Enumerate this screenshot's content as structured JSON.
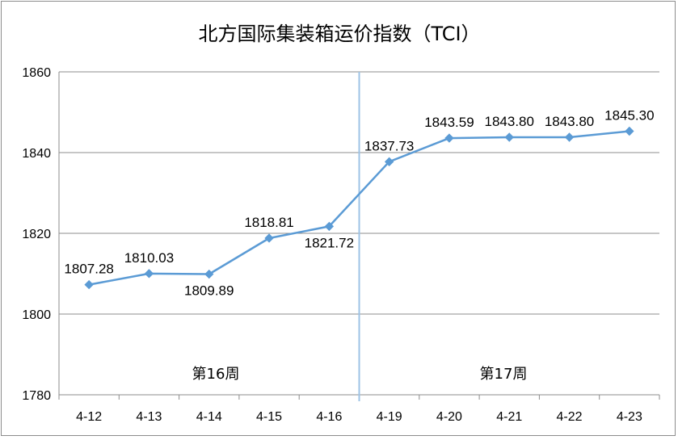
{
  "chart_data": {
    "type": "line",
    "title": "北方国际集装箱运价指数（TCI）",
    "xlabel": "",
    "ylabel": "",
    "categories": [
      "4-12",
      "4-13",
      "4-14",
      "4-15",
      "4-16",
      "4-19",
      "4-20",
      "4-21",
      "4-22",
      "4-23"
    ],
    "series": [
      {
        "values": [
          1807.28,
          1810.03,
          1809.89,
          1818.81,
          1821.72,
          1837.73,
          1843.59,
          1843.8,
          1843.8,
          1845.3
        ],
        "labels": [
          "1807.28",
          "1810.03",
          "1809.89",
          "1818.81",
          "1821.72",
          "1837.73",
          "1843.59",
          "1843.80",
          "1843.80",
          "1845.30"
        ],
        "color": "#5b9bd5"
      }
    ],
    "ylim": [
      1780,
      1860
    ],
    "yticks": [
      "1780",
      "1800",
      "1820",
      "1840",
      "1860"
    ],
    "grid": true,
    "legend": "none",
    "week_divider": {
      "between": [
        "4-16",
        "4-19"
      ],
      "color": "#9dc3e6"
    },
    "annotations": [
      {
        "text": "第16周"
      },
      {
        "text": "第17周"
      }
    ]
  }
}
